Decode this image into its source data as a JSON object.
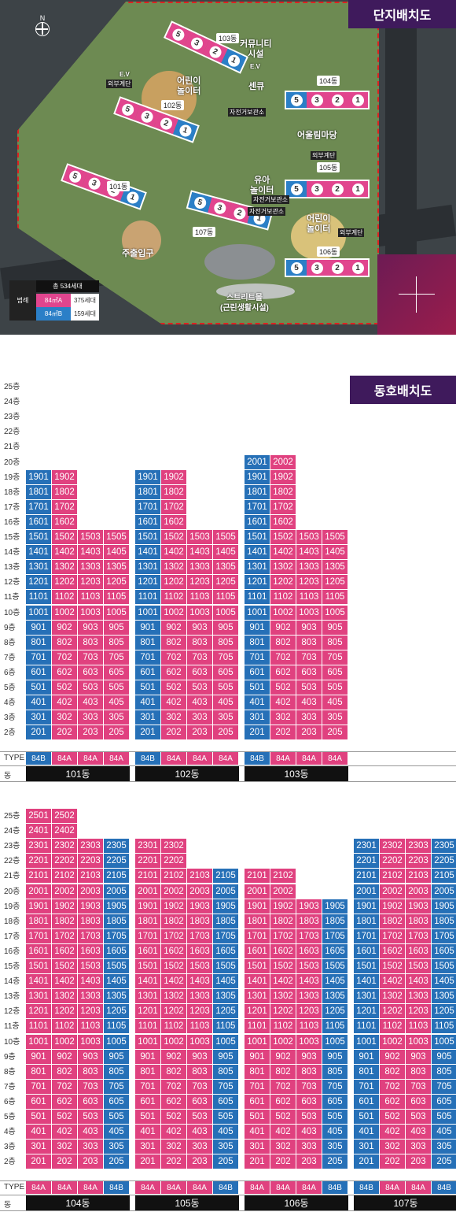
{
  "map": {
    "title": "단지배치도",
    "compass": "N",
    "legend": {
      "label": "범례",
      "total": "총 534세대",
      "rows": [
        {
          "type": "84㎡A",
          "count": "375세대",
          "color": "#e1458e"
        },
        {
          "type": "84㎡B",
          "count": "159세대",
          "color": "#2b7fc7"
        }
      ]
    },
    "buildings": [
      {
        "name": "101동",
        "units": [
          "5",
          "3",
          "2",
          "1"
        ]
      },
      {
        "name": "102동",
        "units": [
          "5",
          "3",
          "2",
          "1"
        ]
      },
      {
        "name": "103동",
        "units": [
          "5",
          "3",
          "2",
          "1"
        ]
      },
      {
        "name": "104동",
        "units": [
          "5",
          "3",
          "2",
          "1"
        ]
      },
      {
        "name": "105동",
        "units": [
          "5",
          "3",
          "2",
          "1"
        ]
      },
      {
        "name": "106동",
        "units": [
          "5",
          "3",
          "2",
          "1"
        ]
      },
      {
        "name": "107동",
        "units": [
          "5",
          "3",
          "2",
          "1"
        ]
      }
    ],
    "labels": {
      "community": "커뮤니티\n시설",
      "ev": "E.V",
      "ev2": "E.V",
      "ext_stair1": "외부계단",
      "ext_stair2": "외부계단",
      "ext_stair3": "외부계단",
      "playground1": "어린이\n놀이터",
      "playground2": "어린이\n놀이터",
      "center": "센큐",
      "yard": "어울림마당",
      "toddler": "유아\n놀이터",
      "bike1": "자전거보관소",
      "bike2": "자전거보관소",
      "bike3": "자전거보관소",
      "entrance": "주출입구",
      "street": "스트리트몰\n(근린생활시설)"
    }
  },
  "floorplan": {
    "title": "동호배치도",
    "type_label": "TYPE",
    "dong_label": "동",
    "block1": {
      "floors": [
        "25층",
        "24층",
        "23층",
        "22층",
        "21층",
        "20층",
        "19층",
        "18층",
        "17층",
        "16층",
        "15층",
        "14층",
        "13층",
        "12층",
        "11층",
        "10층",
        "9층",
        "8층",
        "7층",
        "6층",
        "5층",
        "4층",
        "3층",
        "2층"
      ],
      "buildings": [
        {
          "name": "101동",
          "types": [
            "84B",
            "84A",
            "84A",
            "84A"
          ],
          "max": [
            19,
            19,
            15,
            15
          ]
        },
        {
          "name": "102동",
          "types": [
            "84B",
            "84A",
            "84A",
            "84A"
          ],
          "max": [
            19,
            19,
            15,
            15
          ]
        },
        {
          "name": "103동",
          "types": [
            "84B",
            "84A",
            "84A",
            "84A"
          ],
          "max": [
            20,
            20,
            15,
            15
          ]
        }
      ]
    },
    "block2": {
      "floors": [
        "25층",
        "24층",
        "23층",
        "22층",
        "21층",
        "20층",
        "19층",
        "18층",
        "17층",
        "16층",
        "15층",
        "14층",
        "13층",
        "12층",
        "11층",
        "10층",
        "9층",
        "8층",
        "7층",
        "6층",
        "5층",
        "4층",
        "3층",
        "2층"
      ],
      "buildings": [
        {
          "name": "104동",
          "types": [
            "84A",
            "84A",
            "84A",
            "84B"
          ],
          "max": [
            25,
            25,
            23,
            23
          ]
        },
        {
          "name": "105동",
          "types": [
            "84A",
            "84A",
            "84A",
            "84B"
          ],
          "max": [
            23,
            23,
            21,
            21
          ]
        },
        {
          "name": "106동",
          "types": [
            "84A",
            "84A",
            "84A",
            "84B"
          ],
          "max": [
            21,
            21,
            19,
            19
          ]
        },
        {
          "name": "107동",
          "types": [
            "84B",
            "84A",
            "84A",
            "84B"
          ],
          "max": [
            23,
            23,
            23,
            23
          ]
        }
      ]
    }
  }
}
